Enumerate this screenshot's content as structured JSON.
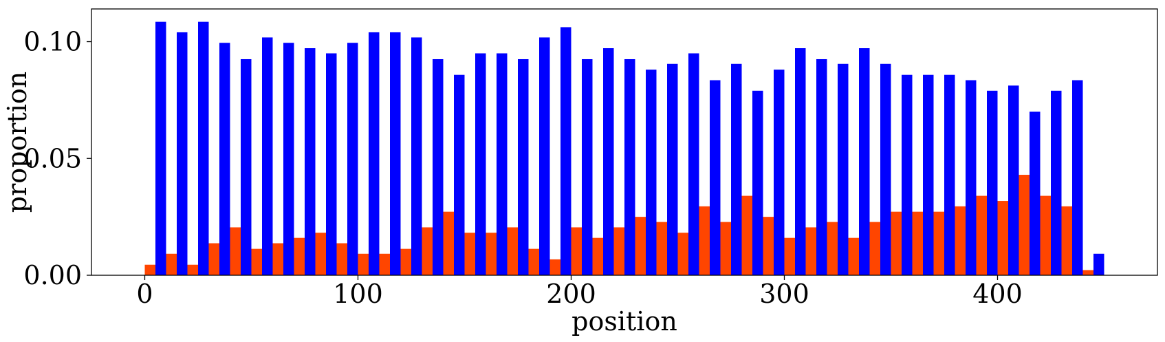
{
  "chart_data": {
    "type": "bar",
    "xlabel": "position",
    "ylabel": "proportion",
    "xlim": [
      -25,
      475
    ],
    "ylim": [
      0,
      0.114
    ],
    "xticks": [
      0,
      100,
      200,
      300,
      400
    ],
    "xtick_labels": [
      "0",
      "100",
      "200",
      "300",
      "400"
    ],
    "yticks": [
      0.0,
      0.05,
      0.1
    ],
    "ytick_labels": [
      "0.00",
      "0.05",
      "0.10"
    ],
    "grid": false,
    "bin_width": 10,
    "bin_starts": [
      0,
      10,
      20,
      30,
      40,
      50,
      60,
      70,
      80,
      90,
      100,
      110,
      120,
      130,
      140,
      150,
      160,
      170,
      180,
      190,
      200,
      210,
      220,
      230,
      240,
      250,
      260,
      270,
      280,
      290,
      300,
      310,
      320,
      330,
      340,
      350,
      360,
      370,
      380,
      390,
      400,
      410,
      420,
      430,
      440
    ],
    "series": [
      {
        "color": "#0000ff",
        "offset": "right",
        "values": [
          0.1085,
          0.104,
          0.1085,
          0.0995,
          0.0925,
          0.1018,
          0.0995,
          0.0972,
          0.095,
          0.0995,
          0.104,
          0.104,
          0.1018,
          0.0925,
          0.0858,
          0.095,
          0.095,
          0.0925,
          0.1018,
          0.1062,
          0.0925,
          0.0972,
          0.0925,
          0.088,
          0.0905,
          0.095,
          0.0835,
          0.0905,
          0.079,
          0.088,
          0.0972,
          0.0925,
          0.0905,
          0.0972,
          0.0905,
          0.0858,
          0.0858,
          0.0858,
          0.0835,
          0.079,
          0.0812,
          0.07,
          0.079,
          0.0835,
          0.0092
        ]
      },
      {
        "color": "#ff4500",
        "offset": "left",
        "values": [
          0.0045,
          0.0092,
          0.0045,
          0.0137,
          0.0205,
          0.0113,
          0.0137,
          0.016,
          0.0182,
          0.0137,
          0.0092,
          0.0092,
          0.0113,
          0.0205,
          0.0272,
          0.0182,
          0.0182,
          0.0205,
          0.0113,
          0.0068,
          0.0205,
          0.016,
          0.0205,
          0.025,
          0.0228,
          0.0182,
          0.0295,
          0.0228,
          0.034,
          0.025,
          0.016,
          0.0205,
          0.0228,
          0.016,
          0.0228,
          0.0272,
          0.0272,
          0.0272,
          0.0295,
          0.034,
          0.0318,
          0.043,
          0.034,
          0.0295,
          0.0022
        ]
      }
    ]
  }
}
